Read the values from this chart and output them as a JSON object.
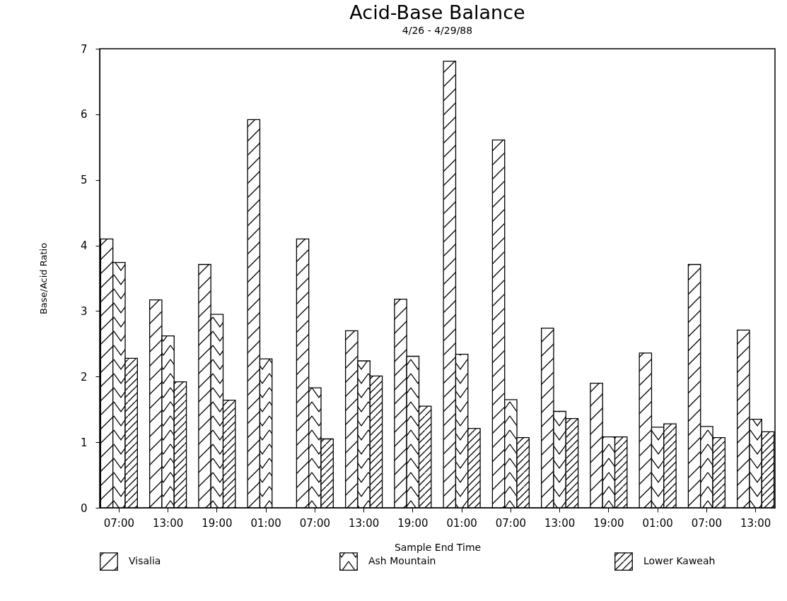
{
  "chart_data": {
    "type": "bar",
    "title": "Acid-Base Balance",
    "subtitle": "4/26 - 4/29/88",
    "xlabel": "Sample End Time",
    "ylabel": "Base/Acid Ratio",
    "categories": [
      "07:00",
      "13:00",
      "19:00",
      "01:00",
      "07:00",
      "13:00",
      "19:00",
      "01:00",
      "07:00",
      "13:00",
      "19:00",
      "01:00",
      "07:00",
      "13:00"
    ],
    "series": [
      {
        "name": "Visalia",
        "color": "#000000",
        "values": [
          4.1,
          3.17,
          3.71,
          5.92,
          4.1,
          2.7,
          3.18,
          6.81,
          5.61,
          2.74,
          1.9,
          2.36,
          3.71,
          2.71
        ]
      },
      {
        "name": "Ash Mountain",
        "color": "#000000",
        "values": [
          3.74,
          2.62,
          2.95,
          2.27,
          1.83,
          2.24,
          2.31,
          2.34,
          1.65,
          1.47,
          1.08,
          1.23,
          1.24,
          1.35
        ]
      },
      {
        "name": "Lower Kaweah",
        "color": "#000000",
        "values": [
          2.28,
          1.92,
          1.64,
          null,
          1.05,
          2.01,
          1.55,
          1.21,
          1.07,
          1.36,
          1.08,
          1.28,
          1.07,
          1.16
        ]
      }
    ],
    "ylim": [
      0,
      7
    ],
    "yticks": [
      0,
      1,
      2,
      3,
      4,
      5,
      6,
      7
    ],
    "grid": false,
    "legend": "bottom"
  }
}
